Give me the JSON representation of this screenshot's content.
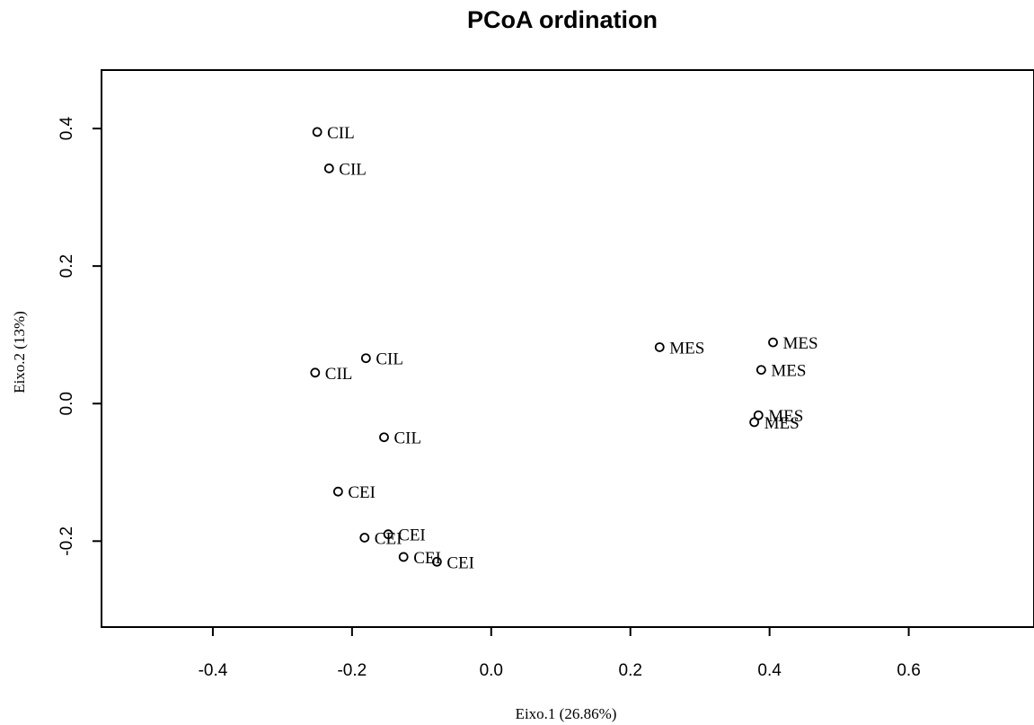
{
  "chart_data": {
    "type": "scatter",
    "title": "PCoA ordination",
    "xlabel": "Eixo.1  (26.86%)",
    "ylabel": "Eixo.2  (13%)",
    "xlim": [
      -0.56,
      0.78
    ],
    "ylim": [
      -0.325,
      0.485
    ],
    "xticks": [
      -0.4,
      -0.2,
      0.0,
      0.2,
      0.4,
      0.6
    ],
    "xtick_labels": [
      "-0.4",
      "-0.2",
      "0.0",
      "0.2",
      "0.4",
      "0.6"
    ],
    "yticks": [
      -0.2,
      0.0,
      0.2,
      0.4
    ],
    "ytick_labels": [
      "-0.2",
      "0.0",
      "0.2",
      "0.4"
    ],
    "grid": false,
    "points": [
      {
        "x": -0.25,
        "y": 0.395,
        "label": "CIL"
      },
      {
        "x": -0.233,
        "y": 0.342,
        "label": "CIL"
      },
      {
        "x": -0.18,
        "y": 0.066,
        "label": "CIL"
      },
      {
        "x": -0.253,
        "y": 0.045,
        "label": "CIL"
      },
      {
        "x": -0.154,
        "y": -0.049,
        "label": "CIL"
      },
      {
        "x": -0.22,
        "y": -0.128,
        "label": "CEI"
      },
      {
        "x": -0.182,
        "y": -0.195,
        "label": "CEI"
      },
      {
        "x": -0.148,
        "y": -0.19,
        "label": "CEI"
      },
      {
        "x": -0.126,
        "y": -0.223,
        "label": "CEI"
      },
      {
        "x": -0.078,
        "y": -0.23,
        "label": "CEI"
      },
      {
        "x": 0.242,
        "y": 0.082,
        "label": "MES"
      },
      {
        "x": 0.405,
        "y": 0.089,
        "label": "MES"
      },
      {
        "x": 0.388,
        "y": 0.049,
        "label": "MES"
      },
      {
        "x": 0.384,
        "y": -0.017,
        "label": "MES"
      },
      {
        "x": 0.378,
        "y": -0.027,
        "label": "MES"
      }
    ]
  }
}
